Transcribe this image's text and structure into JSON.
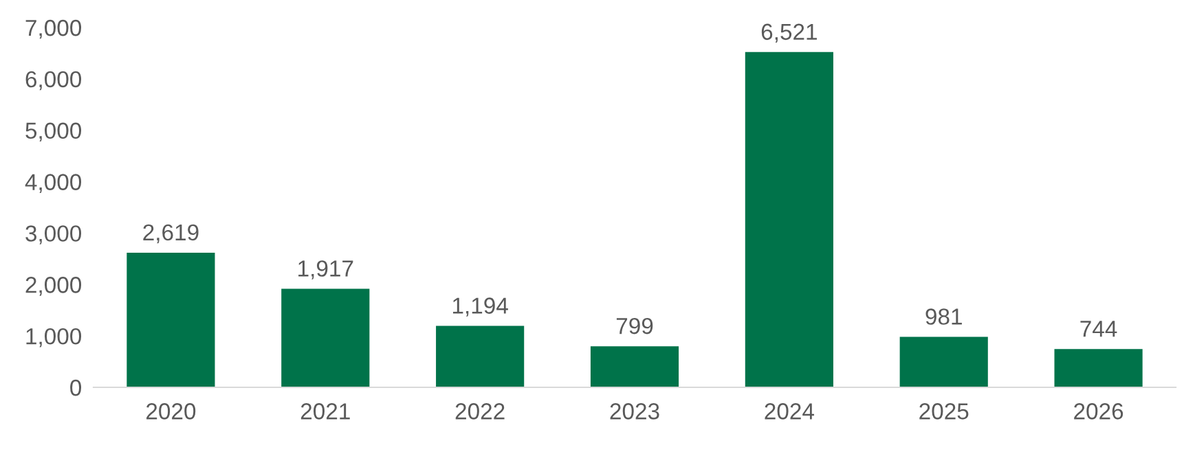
{
  "chart_data": {
    "type": "bar",
    "categories": [
      "2020",
      "2021",
      "2022",
      "2023",
      "2024",
      "2025",
      "2026"
    ],
    "values": [
      2619,
      1917,
      1194,
      799,
      6521,
      981,
      744
    ],
    "value_labels": [
      "2,619",
      "1,917",
      "1,194",
      "799",
      "6,521",
      "981",
      "744"
    ],
    "color": "#00734a",
    "ylim": [
      0,
      7000
    ],
    "yticks": [
      {
        "value": 0,
        "label": "0"
      },
      {
        "value": 1000,
        "label": "1,000"
      },
      {
        "value": 2000,
        "label": "2,000"
      },
      {
        "value": 3000,
        "label": "3,000"
      },
      {
        "value": 4000,
        "label": "4,000"
      },
      {
        "value": 5000,
        "label": "5,000"
      },
      {
        "value": 6000,
        "label": "6,000"
      },
      {
        "value": 7000,
        "label": "7,000"
      }
    ],
    "grid": false,
    "legend": false
  }
}
